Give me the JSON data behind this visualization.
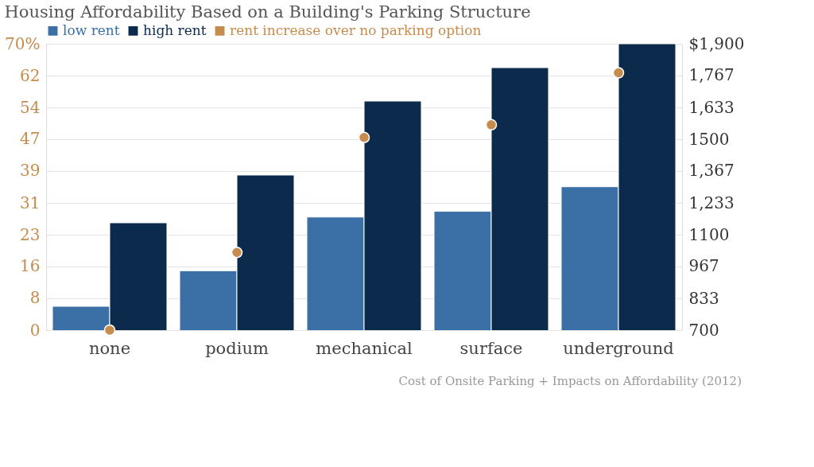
{
  "chart_data": {
    "type": "bar",
    "title": "Housing Affordability Based on a Building's Parking Structure",
    "categories": [
      "none",
      "podium",
      "mechanical",
      "surface",
      "underground"
    ],
    "series": [
      {
        "name": "low rent",
        "color": "#3b70a6",
        "values": [
          800,
          949,
          1174,
          1198,
          1301
        ],
        "axis": "y2"
      },
      {
        "name": "high rent",
        "color": "#0c2a4b",
        "values": [
          1150,
          1350,
          1660,
          1800,
          1900
        ],
        "axis": "y2"
      },
      {
        "name": "rent increase over no parking option",
        "color": "#c68c4e",
        "type": "scatter",
        "values": [
          0,
          19,
          47.1,
          50.2,
          62.9
        ],
        "axis": "y"
      }
    ],
    "ylim": [
      0,
      70
    ],
    "yticks": [
      0,
      {
        "value": 7.7778,
        "label": "8"
      },
      {
        "value": 15.5556,
        "label": "16"
      },
      {
        "value": 23.3333,
        "label": "23"
      },
      {
        "value": 31.1111,
        "label": "31"
      },
      {
        "value": 38.8889,
        "label": "39"
      },
      {
        "value": 46.6667,
        "label": "47"
      },
      {
        "value": 54.4444,
        "label": "54"
      },
      {
        "value": 62.2222,
        "label": "62"
      },
      {
        "value": 70,
        "label": "70%"
      }
    ],
    "y2lim": [
      700,
      1900
    ],
    "y2ticks": [
      700,
      {
        "value": 833.33,
        "label": "833"
      },
      {
        "value": 966.67,
        "label": "967"
      },
      1100,
      {
        "value": 1233.33,
        "label": "1,233"
      },
      {
        "value": 1366.67,
        "label": "1,367"
      },
      1500,
      {
        "value": 1633.33,
        "label": "1,633"
      },
      {
        "value": 1766.67,
        "label": "1,767"
      },
      {
        "value": 1900,
        "label": "$1,900"
      }
    ],
    "grid": "y",
    "legend": "top left",
    "marker": "circle",
    "annotations": [
      "Cost of Onsite Parking + Impacts on Affordability (2012)"
    ]
  }
}
